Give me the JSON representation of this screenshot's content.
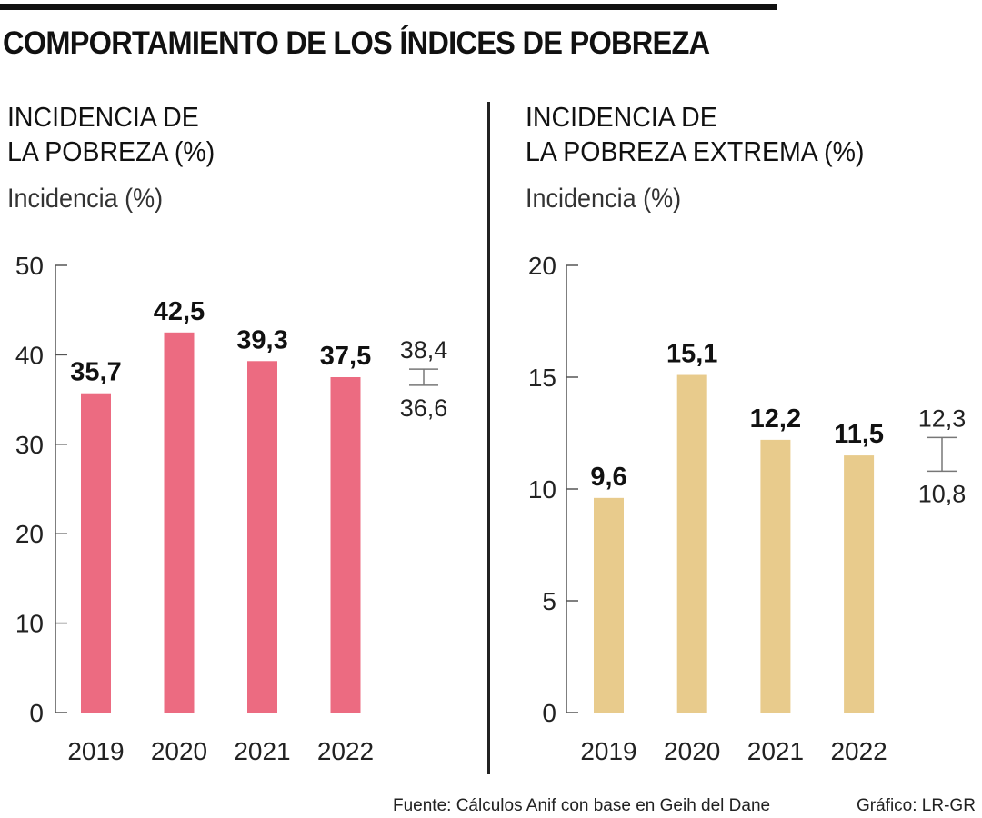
{
  "title": "COMPORTAMIENTO DE LOS ÍNDICES DE POBREZA",
  "footer": {
    "source": "Fuente: Cálculos Anif con base en Geih del Dane",
    "credit": "Gráfico: LR-GR"
  },
  "colors": {
    "poverty_bar": "#EC6B81",
    "extreme_bar": "#E8CB8C",
    "axis": "#555555",
    "range": "#777777"
  },
  "chart_data": [
    {
      "type": "bar",
      "title_line1": "INCIDENCIA DE",
      "title_line2": "LA POBREZA (%)",
      "ylabel": "Incidencia (%)",
      "xlabel": "",
      "categories": [
        "2019",
        "2020",
        "2021",
        "2022"
      ],
      "values": [
        35.7,
        42.5,
        39.3,
        37.5
      ],
      "value_labels": [
        "35,7",
        "42,5",
        "39,3",
        "37,5"
      ],
      "ylim": [
        0,
        50
      ],
      "yticks": [
        0,
        10,
        20,
        30,
        40,
        50
      ],
      "ytick_labels": [
        "0",
        "10",
        "20",
        "30",
        "40",
        "50"
      ],
      "grid": false,
      "range_annotation": {
        "high": 38.4,
        "low": 36.6,
        "high_label": "38,4",
        "low_label": "36,6"
      }
    },
    {
      "type": "bar",
      "title_line1": "INCIDENCIA DE",
      "title_line2": "LA POBREZA EXTREMA (%)",
      "ylabel": "Incidencia (%)",
      "xlabel": "",
      "categories": [
        "2019",
        "2020",
        "2021",
        "2022"
      ],
      "values": [
        9.6,
        15.1,
        12.2,
        11.5
      ],
      "value_labels": [
        "9,6",
        "15,1",
        "12,2",
        "11,5"
      ],
      "ylim": [
        0,
        20
      ],
      "yticks": [
        0,
        5,
        10,
        15,
        20
      ],
      "ytick_labels": [
        "0",
        "5",
        "10",
        "15",
        "20"
      ],
      "grid": false,
      "range_annotation": {
        "high": 12.3,
        "low": 10.8,
        "high_label": "12,3",
        "low_label": "10,8"
      }
    }
  ]
}
